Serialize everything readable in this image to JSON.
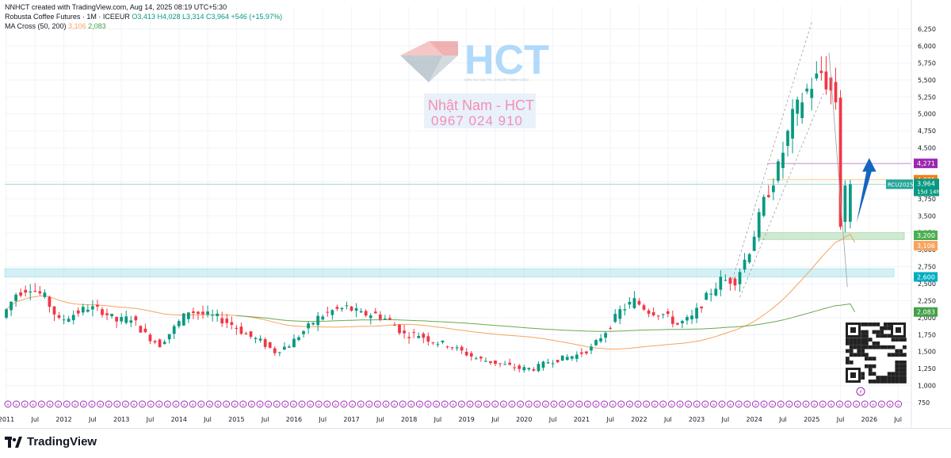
{
  "header": {
    "created_by": "NNHCT created with TradingView.com, Aug 14, 2025 08:19 UTC+5:30",
    "symbol": "Robusta Coffee Futures · 1M · ICEEUR",
    "ohlc": "O3,413 H4,028 L3,314 C3,964 +546 (+15.97%)",
    "ma_label": "MA Cross (50, 200)",
    "ma_fast": "3,106",
    "ma_slow": "2,083"
  },
  "watermark": {
    "logo_text": "HCT",
    "logo_small": "KIẾN TẠO GIÁ TRỊ - CHIA SẺ THÀNH CÔNG",
    "name": "Nhật Nam - HCT",
    "phone": "0967 024 910"
  },
  "footer": {
    "brand": "TradingView"
  },
  "colors": {
    "up": "#089981",
    "down": "#f23645",
    "ma50": "#f7a35c",
    "ma200": "#6aa84f",
    "zone": "#b3e5ec",
    "support": "#c8e6c9",
    "purple": "#9c27b0"
  },
  "chart_data": {
    "type": "candlestick",
    "title": "Robusta Coffee Futures · 1M · ICEEUR",
    "y_ticks": [
      "6,250",
      "6,000",
      "5,750",
      "5,500",
      "5,250",
      "5,000",
      "4,750",
      "4,500",
      "4,250",
      "4,000",
      "3,750",
      "3,500",
      "3,250",
      "3,000",
      "2,750",
      "2,500",
      "2,250",
      "2,000",
      "1,750",
      "1,500",
      "1,250",
      "1,000",
      "750"
    ],
    "x_ticks": [
      "2011",
      "Jul",
      "2012",
      "Jul",
      "2013",
      "Jul",
      "2014",
      "Jul",
      "2015",
      "Jul",
      "2016",
      "Jul",
      "2017",
      "Jul",
      "2018",
      "Jul",
      "2019",
      "Jul",
      "2020",
      "Jul",
      "2021",
      "Jul",
      "2022",
      "Jul",
      "2023",
      "Jul",
      "2024",
      "Jul",
      "2025",
      "Jul",
      "2026",
      "Jul"
    ],
    "ylim": [
      750,
      6350
    ],
    "series": [
      {
        "name": "Robusta Coffee Futures",
        "values": [
          [
            2011.0,
            2000
          ],
          [
            2011.25,
            2350
          ],
          [
            2011.5,
            2450
          ],
          [
            2011.75,
            2300
          ],
          [
            2012.0,
            1950
          ],
          [
            2012.25,
            2050
          ],
          [
            2012.5,
            2150
          ],
          [
            2012.75,
            2100
          ],
          [
            2013.0,
            1950
          ],
          [
            2013.25,
            2000
          ],
          [
            2013.5,
            1750
          ],
          [
            2013.75,
            1600
          ],
          [
            2014.0,
            1850
          ],
          [
            2014.25,
            2100
          ],
          [
            2014.5,
            2050
          ],
          [
            2014.75,
            2000
          ],
          [
            2015.0,
            1900
          ],
          [
            2015.25,
            1750
          ],
          [
            2015.5,
            1650
          ],
          [
            2015.75,
            1500
          ],
          [
            2016.0,
            1600
          ],
          [
            2016.25,
            1800
          ],
          [
            2016.5,
            2000
          ],
          [
            2016.75,
            2100
          ],
          [
            2017.0,
            2150
          ],
          [
            2017.25,
            2050
          ],
          [
            2017.5,
            2050
          ],
          [
            2017.75,
            1950
          ],
          [
            2018.0,
            1750
          ],
          [
            2018.25,
            1750
          ],
          [
            2018.5,
            1650
          ],
          [
            2018.75,
            1600
          ],
          [
            2019.0,
            1500
          ],
          [
            2019.25,
            1400
          ],
          [
            2019.5,
            1350
          ],
          [
            2019.75,
            1300
          ],
          [
            2020.0,
            1250
          ],
          [
            2020.25,
            1250
          ],
          [
            2020.5,
            1350
          ],
          [
            2020.75,
            1400
          ],
          [
            2021.0,
            1450
          ],
          [
            2021.25,
            1550
          ],
          [
            2021.5,
            1800
          ],
          [
            2021.75,
            2100
          ],
          [
            2022.0,
            2250
          ],
          [
            2022.25,
            2100
          ],
          [
            2022.5,
            2050
          ],
          [
            2022.75,
            1900
          ],
          [
            2023.0,
            2000
          ],
          [
            2023.25,
            2300
          ],
          [
            2023.5,
            2550
          ],
          [
            2023.75,
            2550
          ],
          [
            2024.0,
            3000
          ],
          [
            2024.25,
            3700
          ],
          [
            2024.5,
            4200
          ],
          [
            2024.75,
            4950
          ],
          [
            2025.0,
            5350
          ],
          [
            2025.25,
            5600
          ],
          [
            2025.5,
            5200
          ],
          [
            2025.58,
            3413
          ],
          [
            2025.67,
            3964
          ]
        ]
      }
    ],
    "ma_cross": {
      "fast_period": 50,
      "slow_period": 200,
      "fast_last": 3106,
      "slow_last": 2083
    },
    "price_labels": [
      {
        "text": "4,271",
        "value": 4271,
        "color": "#9c27b0"
      },
      {
        "text": "4,031",
        "value": 4031,
        "color": "#f57f17"
      },
      {
        "text": "3,964",
        "value": 3964,
        "color": "#089981",
        "sub": "15d 14h",
        "tag": "RCU2025"
      },
      {
        "text": "3,200",
        "value": 3200,
        "color": "#4caf50"
      },
      {
        "text": "3,106",
        "value": 3106,
        "color": "#f7a35c"
      },
      {
        "text": "2,600",
        "value": 2600,
        "color": "#00acc1"
      },
      {
        "text": "2,083",
        "value": 2083,
        "color": "#43a047"
      }
    ],
    "zones": [
      {
        "name": "resistance-zone",
        "low": 2600,
        "high": 2720
      },
      {
        "name": "support-zone",
        "low": 3150,
        "high": 3250
      }
    ]
  }
}
